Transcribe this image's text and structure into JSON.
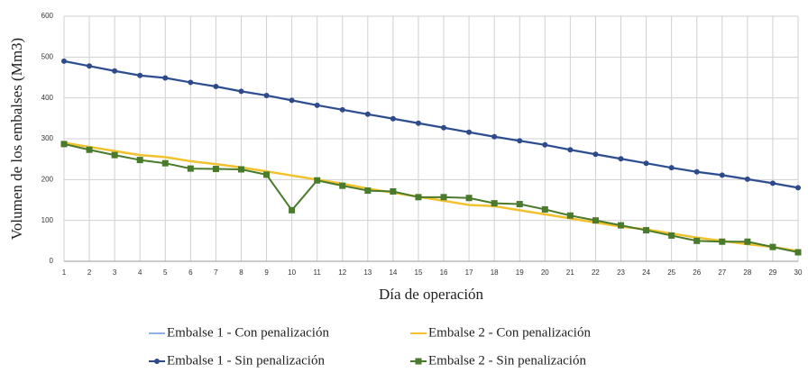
{
  "chart_data": {
    "type": "line",
    "xlabel": "Día de operación",
    "ylabel": "Volumen de los embalses (Mm3)",
    "x": [
      1,
      2,
      3,
      4,
      5,
      6,
      7,
      8,
      9,
      10,
      11,
      12,
      13,
      14,
      15,
      16,
      17,
      18,
      19,
      20,
      21,
      22,
      23,
      24,
      25,
      26,
      27,
      28,
      29,
      30
    ],
    "xlim": [
      1,
      30
    ],
    "xticks": [
      1,
      2,
      3,
      4,
      5,
      6,
      7,
      8,
      9,
      10,
      11,
      12,
      13,
      14,
      15,
      16,
      17,
      18,
      19,
      20,
      21,
      22,
      23,
      24,
      25,
      26,
      27,
      28,
      29,
      30
    ],
    "ylim": [
      0,
      600
    ],
    "yticks": [
      0,
      100,
      200,
      300,
      400,
      500,
      600
    ],
    "grid": true,
    "series": [
      {
        "name": "Embalse 1 - Con penalización",
        "color": "#8fb4e3",
        "marker": null,
        "values": [
          490,
          478,
          466,
          455,
          449,
          438,
          428,
          416,
          406,
          394,
          382,
          371,
          360,
          349,
          338,
          327,
          316,
          305,
          295,
          285,
          273,
          262,
          251,
          240,
          229,
          219,
          211,
          201,
          191,
          180
        ]
      },
      {
        "name": "Embalse 2 - Con penalización",
        "color": "#f2c12e",
        "marker": null,
        "values": [
          290,
          280,
          270,
          260,
          255,
          245,
          238,
          230,
          220,
          210,
          200,
          190,
          178,
          168,
          158,
          148,
          138,
          135,
          125,
          115,
          105,
          95,
          85,
          78,
          68,
          58,
          50,
          42,
          35,
          25
        ]
      },
      {
        "name": "Embalse 1 - Sin penalización",
        "color": "#2e4a8b",
        "marker": "circle",
        "values": [
          490,
          478,
          466,
          455,
          449,
          438,
          428,
          416,
          406,
          394,
          382,
          371,
          360,
          349,
          338,
          327,
          316,
          305,
          295,
          285,
          273,
          262,
          251,
          240,
          229,
          219,
          211,
          201,
          191,
          180
        ]
      },
      {
        "name": "Embalse 2 - Sin penalización",
        "color": "#4a7a2c",
        "marker": "square",
        "values": [
          287,
          273,
          260,
          248,
          240,
          227,
          226,
          225,
          212,
          125,
          198,
          185,
          173,
          171,
          157,
          157,
          155,
          142,
          140,
          127,
          112,
          100,
          88,
          76,
          63,
          50,
          48,
          48,
          35,
          22
        ]
      }
    ]
  }
}
